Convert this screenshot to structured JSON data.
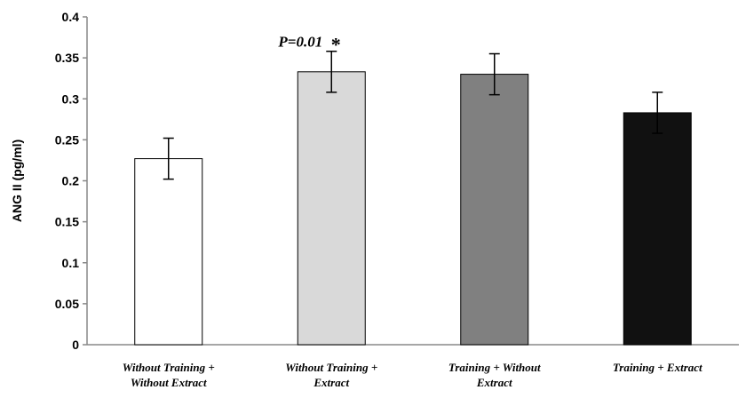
{
  "chart_data": {
    "type": "bar",
    "ylabel": "ANG II (pg/ml)",
    "xlabel": "",
    "ylim": [
      0,
      0.4
    ],
    "yticks": [
      "0",
      "0.05",
      "0.1",
      "0.15",
      "0.2",
      "0.25",
      "0.3",
      "0.35",
      "0.4"
    ],
    "grid": false,
    "categories": [
      [
        "Without Training +",
        "Without Extract"
      ],
      [
        "Without Training +",
        "Extract"
      ],
      [
        "Training + Without",
        "Extract"
      ],
      [
        "Training + Extract"
      ]
    ],
    "values": [
      0.227,
      0.333,
      0.33,
      0.283
    ],
    "errors": [
      0.025,
      0.025,
      0.025,
      0.025
    ],
    "bar_colors": [
      "#ffffff",
      "#d9d9d9",
      "#808080",
      "#111111"
    ],
    "annotation": {
      "text": "P=0.01",
      "marker": "*",
      "category_index": 1
    }
  }
}
